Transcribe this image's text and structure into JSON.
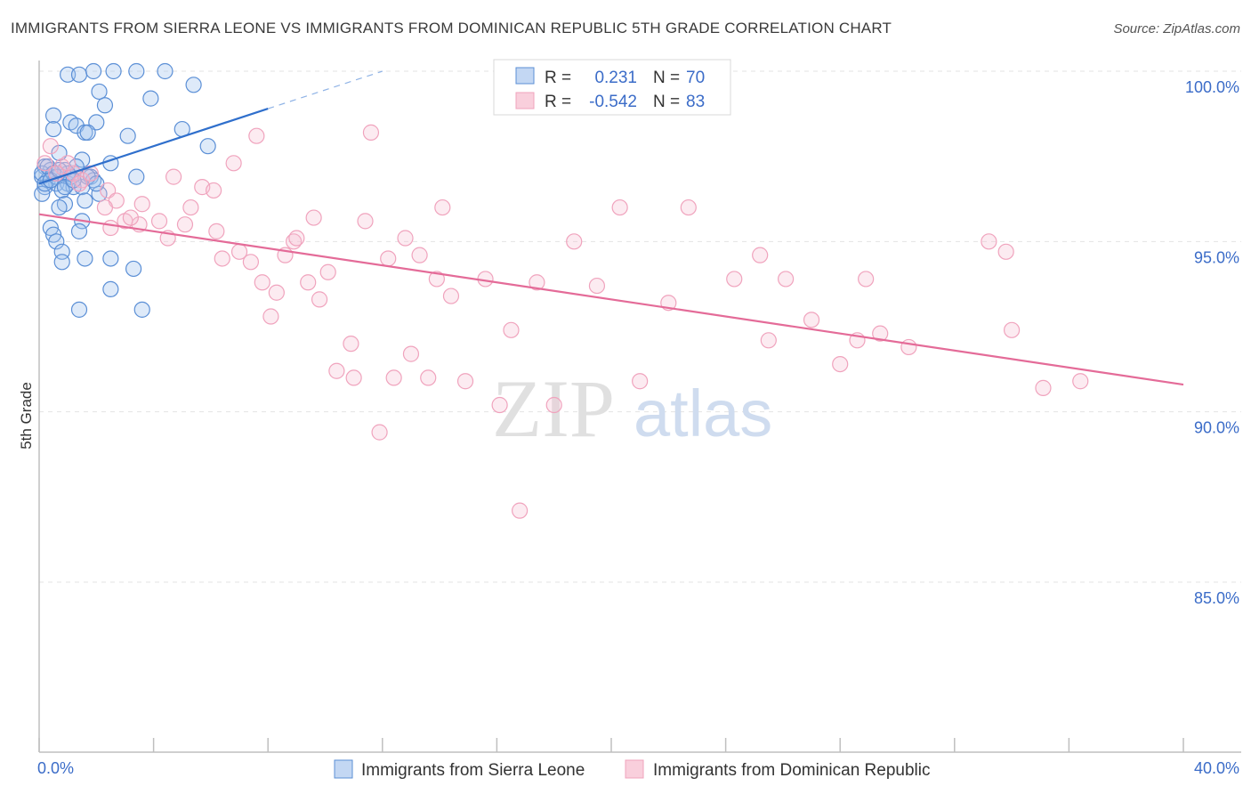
{
  "title": "IMMIGRANTS FROM SIERRA LEONE VS IMMIGRANTS FROM DOMINICAN REPUBLIC 5TH GRADE CORRELATION CHART",
  "source": "Source: ZipAtlas.com",
  "watermark": {
    "zip": "ZIP",
    "atlas": "atlas"
  },
  "colors": {
    "blue": "#5b8fd6",
    "blue_line": "#2f6fcc",
    "pink": "#f0a3bd",
    "pink_line": "#e46b98",
    "grid": "#e3e3e3"
  },
  "legend": {
    "r_label": "R =",
    "n_label": "N =",
    "rows": [
      {
        "r": "0.231",
        "n": "70"
      },
      {
        "r": "-0.542",
        "n": "83"
      }
    ]
  },
  "chart_data": {
    "type": "scatter",
    "title": "IMMIGRANTS FROM SIERRA LEONE VS IMMIGRANTS FROM DOMINICAN REPUBLIC 5TH GRADE CORRELATION CHART",
    "xlabel": "",
    "ylabel": "5th Grade",
    "xlim": [
      0,
      40
    ],
    "ylim": [
      81,
      100.5
    ],
    "x_tick_labels": [
      "0.0%",
      "40.0%"
    ],
    "y_ticks": [
      85,
      90,
      95,
      100
    ],
    "y_tick_labels": [
      "85.0%",
      "90.0%",
      "95.0%",
      "100.0%"
    ],
    "grid": true,
    "legend_position": "bottom",
    "series": [
      {
        "name": "Immigrants from Sierra Leone",
        "color": "#5b8fd6",
        "r": 0.231,
        "n": 70,
        "trend": {
          "x": [
            0,
            8.0
          ],
          "y": [
            96.7,
            98.9
          ],
          "dashed_to": [
            12.0,
            100.0
          ]
        },
        "points": [
          [
            1.0,
            99.9
          ],
          [
            1.4,
            99.9
          ],
          [
            1.9,
            100.0
          ],
          [
            2.6,
            100.0
          ],
          [
            3.4,
            100.0
          ],
          [
            4.4,
            100.0
          ],
          [
            2.1,
            99.4
          ],
          [
            3.9,
            99.2
          ],
          [
            5.4,
            99.6
          ],
          [
            2.3,
            99.0
          ],
          [
            0.5,
            98.7
          ],
          [
            1.1,
            98.5
          ],
          [
            1.3,
            98.4
          ],
          [
            2.0,
            98.5
          ],
          [
            0.5,
            98.3
          ],
          [
            1.6,
            98.2
          ],
          [
            1.7,
            98.2
          ],
          [
            3.1,
            98.1
          ],
          [
            5.0,
            98.3
          ],
          [
            5.9,
            97.8
          ],
          [
            0.7,
            97.6
          ],
          [
            1.5,
            97.4
          ],
          [
            2.5,
            97.3
          ],
          [
            0.2,
            97.2
          ],
          [
            0.4,
            97.1
          ],
          [
            0.9,
            97.1
          ],
          [
            1.2,
            97.0
          ],
          [
            1.8,
            96.9
          ],
          [
            3.4,
            96.9
          ],
          [
            0.1,
            96.9
          ],
          [
            0.3,
            96.8
          ],
          [
            0.6,
            96.7
          ],
          [
            1.0,
            96.7
          ],
          [
            1.2,
            96.6
          ],
          [
            1.9,
            96.8
          ],
          [
            0.2,
            96.6
          ],
          [
            0.8,
            96.5
          ],
          [
            1.5,
            96.6
          ],
          [
            2.1,
            96.4
          ],
          [
            0.1,
            96.4
          ],
          [
            1.6,
            96.2
          ],
          [
            0.9,
            96.1
          ],
          [
            0.7,
            96.0
          ],
          [
            1.5,
            95.6
          ],
          [
            0.4,
            95.4
          ],
          [
            1.4,
            95.3
          ],
          [
            0.5,
            95.2
          ],
          [
            0.6,
            95.0
          ],
          [
            0.8,
            94.7
          ],
          [
            0.8,
            94.4
          ],
          [
            1.6,
            94.5
          ],
          [
            2.5,
            94.5
          ],
          [
            3.3,
            94.2
          ],
          [
            2.5,
            93.6
          ],
          [
            1.4,
            93.0
          ],
          [
            3.6,
            93.0
          ],
          [
            0.1,
            97.0
          ],
          [
            0.3,
            97.2
          ],
          [
            1.1,
            96.9
          ],
          [
            1.3,
            97.2
          ],
          [
            0.2,
            96.7
          ],
          [
            0.5,
            97.0
          ],
          [
            1.7,
            96.9
          ],
          [
            0.6,
            96.9
          ],
          [
            1.0,
            97.0
          ],
          [
            2.0,
            96.7
          ],
          [
            0.4,
            96.8
          ],
          [
            0.9,
            96.6
          ],
          [
            1.2,
            96.8
          ],
          [
            0.7,
            97.1
          ]
        ]
      },
      {
        "name": "Immigrants from Dominican Republic",
        "color": "#f0a3bd",
        "r": -0.542,
        "n": 83,
        "trend": {
          "x": [
            0,
            40
          ],
          "y": [
            95.8,
            90.8
          ]
        },
        "points": [
          [
            0.4,
            97.8
          ],
          [
            0.2,
            97.3
          ],
          [
            0.8,
            97.2
          ],
          [
            1.2,
            97.0
          ],
          [
            1.5,
            96.8
          ],
          [
            1.8,
            97.0
          ],
          [
            2.4,
            96.5
          ],
          [
            2.7,
            96.2
          ],
          [
            2.3,
            96.0
          ],
          [
            3.0,
            95.6
          ],
          [
            3.5,
            95.5
          ],
          [
            3.6,
            96.1
          ],
          [
            4.2,
            95.6
          ],
          [
            4.5,
            95.1
          ],
          [
            5.1,
            95.5
          ],
          [
            5.3,
            96.0
          ],
          [
            4.7,
            96.9
          ],
          [
            5.7,
            96.6
          ],
          [
            6.1,
            96.5
          ],
          [
            6.2,
            95.3
          ],
          [
            6.4,
            94.5
          ],
          [
            6.8,
            97.3
          ],
          [
            7.0,
            94.7
          ],
          [
            7.4,
            94.4
          ],
          [
            7.6,
            98.1
          ],
          [
            7.8,
            93.8
          ],
          [
            8.1,
            92.8
          ],
          [
            8.3,
            93.5
          ],
          [
            8.6,
            94.6
          ],
          [
            8.9,
            95.0
          ],
          [
            9.0,
            95.1
          ],
          [
            9.4,
            93.8
          ],
          [
            9.6,
            95.7
          ],
          [
            9.8,
            93.3
          ],
          [
            10.1,
            94.1
          ],
          [
            10.4,
            91.2
          ],
          [
            10.9,
            92.0
          ],
          [
            11.0,
            91.0
          ],
          [
            11.4,
            95.6
          ],
          [
            11.6,
            98.2
          ],
          [
            11.9,
            89.4
          ],
          [
            12.2,
            94.5
          ],
          [
            12.4,
            91.0
          ],
          [
            12.8,
            95.1
          ],
          [
            13.0,
            91.7
          ],
          [
            13.3,
            94.6
          ],
          [
            13.6,
            91.0
          ],
          [
            13.9,
            93.9
          ],
          [
            14.1,
            96.0
          ],
          [
            14.4,
            93.4
          ],
          [
            14.9,
            90.9
          ],
          [
            15.6,
            93.9
          ],
          [
            16.1,
            90.2
          ],
          [
            16.5,
            92.4
          ],
          [
            16.8,
            87.1
          ],
          [
            17.4,
            93.8
          ],
          [
            18.0,
            90.2
          ],
          [
            18.7,
            95.0
          ],
          [
            19.5,
            93.7
          ],
          [
            20.3,
            96.0
          ],
          [
            21.0,
            90.9
          ],
          [
            22.0,
            93.2
          ],
          [
            22.7,
            96.0
          ],
          [
            24.3,
            93.9
          ],
          [
            25.2,
            94.6
          ],
          [
            25.5,
            92.1
          ],
          [
            26.1,
            93.9
          ],
          [
            27.0,
            92.7
          ],
          [
            28.0,
            91.4
          ],
          [
            28.6,
            92.1
          ],
          [
            28.9,
            93.9
          ],
          [
            29.4,
            92.3
          ],
          [
            30.4,
            91.9
          ],
          [
            33.2,
            95.0
          ],
          [
            33.8,
            94.7
          ],
          [
            34.0,
            92.4
          ],
          [
            35.1,
            90.7
          ],
          [
            36.4,
            90.9
          ],
          [
            1.0,
            97.3
          ],
          [
            1.4,
            96.7
          ],
          [
            3.2,
            95.7
          ],
          [
            2.5,
            95.4
          ],
          [
            0.6,
            97.0
          ]
        ]
      }
    ]
  },
  "bottom_legend": [
    "Immigrants from Sierra Leone",
    "Immigrants from Dominican Republic"
  ]
}
